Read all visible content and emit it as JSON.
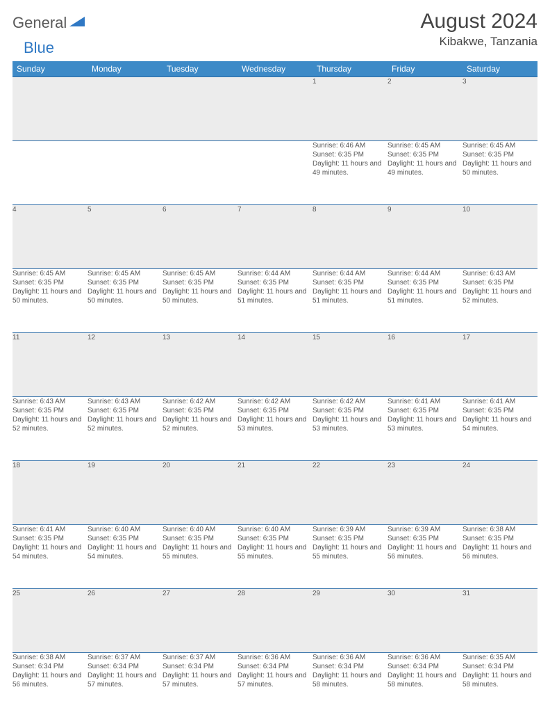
{
  "brand": {
    "part1": "General",
    "part2": "Blue"
  },
  "title": "August 2024",
  "location": "Kibakwe, Tanzania",
  "colors": {
    "header_bg": "#3d8ac7",
    "header_text": "#ffffff",
    "daynum_bg": "#ececec",
    "row_border": "#2f6ea8",
    "text": "#555555",
    "logo_gray": "#5a5a5a",
    "logo_blue": "#2f78c4",
    "page_bg": "#ffffff"
  },
  "weekdays": [
    "Sunday",
    "Monday",
    "Tuesday",
    "Wednesday",
    "Thursday",
    "Friday",
    "Saturday"
  ],
  "weeks": [
    [
      null,
      null,
      null,
      null,
      {
        "d": "1",
        "sr": "6:46 AM",
        "ss": "6:35 PM",
        "dl": "11 hours and 49 minutes."
      },
      {
        "d": "2",
        "sr": "6:45 AM",
        "ss": "6:35 PM",
        "dl": "11 hours and 49 minutes."
      },
      {
        "d": "3",
        "sr": "6:45 AM",
        "ss": "6:35 PM",
        "dl": "11 hours and 50 minutes."
      }
    ],
    [
      {
        "d": "4",
        "sr": "6:45 AM",
        "ss": "6:35 PM",
        "dl": "11 hours and 50 minutes."
      },
      {
        "d": "5",
        "sr": "6:45 AM",
        "ss": "6:35 PM",
        "dl": "11 hours and 50 minutes."
      },
      {
        "d": "6",
        "sr": "6:45 AM",
        "ss": "6:35 PM",
        "dl": "11 hours and 50 minutes."
      },
      {
        "d": "7",
        "sr": "6:44 AM",
        "ss": "6:35 PM",
        "dl": "11 hours and 51 minutes."
      },
      {
        "d": "8",
        "sr": "6:44 AM",
        "ss": "6:35 PM",
        "dl": "11 hours and 51 minutes."
      },
      {
        "d": "9",
        "sr": "6:44 AM",
        "ss": "6:35 PM",
        "dl": "11 hours and 51 minutes."
      },
      {
        "d": "10",
        "sr": "6:43 AM",
        "ss": "6:35 PM",
        "dl": "11 hours and 52 minutes."
      }
    ],
    [
      {
        "d": "11",
        "sr": "6:43 AM",
        "ss": "6:35 PM",
        "dl": "11 hours and 52 minutes."
      },
      {
        "d": "12",
        "sr": "6:43 AM",
        "ss": "6:35 PM",
        "dl": "11 hours and 52 minutes."
      },
      {
        "d": "13",
        "sr": "6:42 AM",
        "ss": "6:35 PM",
        "dl": "11 hours and 52 minutes."
      },
      {
        "d": "14",
        "sr": "6:42 AM",
        "ss": "6:35 PM",
        "dl": "11 hours and 53 minutes."
      },
      {
        "d": "15",
        "sr": "6:42 AM",
        "ss": "6:35 PM",
        "dl": "11 hours and 53 minutes."
      },
      {
        "d": "16",
        "sr": "6:41 AM",
        "ss": "6:35 PM",
        "dl": "11 hours and 53 minutes."
      },
      {
        "d": "17",
        "sr": "6:41 AM",
        "ss": "6:35 PM",
        "dl": "11 hours and 54 minutes."
      }
    ],
    [
      {
        "d": "18",
        "sr": "6:41 AM",
        "ss": "6:35 PM",
        "dl": "11 hours and 54 minutes."
      },
      {
        "d": "19",
        "sr": "6:40 AM",
        "ss": "6:35 PM",
        "dl": "11 hours and 54 minutes."
      },
      {
        "d": "20",
        "sr": "6:40 AM",
        "ss": "6:35 PM",
        "dl": "11 hours and 55 minutes."
      },
      {
        "d": "21",
        "sr": "6:40 AM",
        "ss": "6:35 PM",
        "dl": "11 hours and 55 minutes."
      },
      {
        "d": "22",
        "sr": "6:39 AM",
        "ss": "6:35 PM",
        "dl": "11 hours and 55 minutes."
      },
      {
        "d": "23",
        "sr": "6:39 AM",
        "ss": "6:35 PM",
        "dl": "11 hours and 56 minutes."
      },
      {
        "d": "24",
        "sr": "6:38 AM",
        "ss": "6:35 PM",
        "dl": "11 hours and 56 minutes."
      }
    ],
    [
      {
        "d": "25",
        "sr": "6:38 AM",
        "ss": "6:34 PM",
        "dl": "11 hours and 56 minutes."
      },
      {
        "d": "26",
        "sr": "6:37 AM",
        "ss": "6:34 PM",
        "dl": "11 hours and 57 minutes."
      },
      {
        "d": "27",
        "sr": "6:37 AM",
        "ss": "6:34 PM",
        "dl": "11 hours and 57 minutes."
      },
      {
        "d": "28",
        "sr": "6:36 AM",
        "ss": "6:34 PM",
        "dl": "11 hours and 57 minutes."
      },
      {
        "d": "29",
        "sr": "6:36 AM",
        "ss": "6:34 PM",
        "dl": "11 hours and 58 minutes."
      },
      {
        "d": "30",
        "sr": "6:36 AM",
        "ss": "6:34 PM",
        "dl": "11 hours and 58 minutes."
      },
      {
        "d": "31",
        "sr": "6:35 AM",
        "ss": "6:34 PM",
        "dl": "11 hours and 58 minutes."
      }
    ]
  ],
  "labels": {
    "sunrise": "Sunrise: ",
    "sunset": "Sunset: ",
    "daylight": "Daylight: "
  }
}
